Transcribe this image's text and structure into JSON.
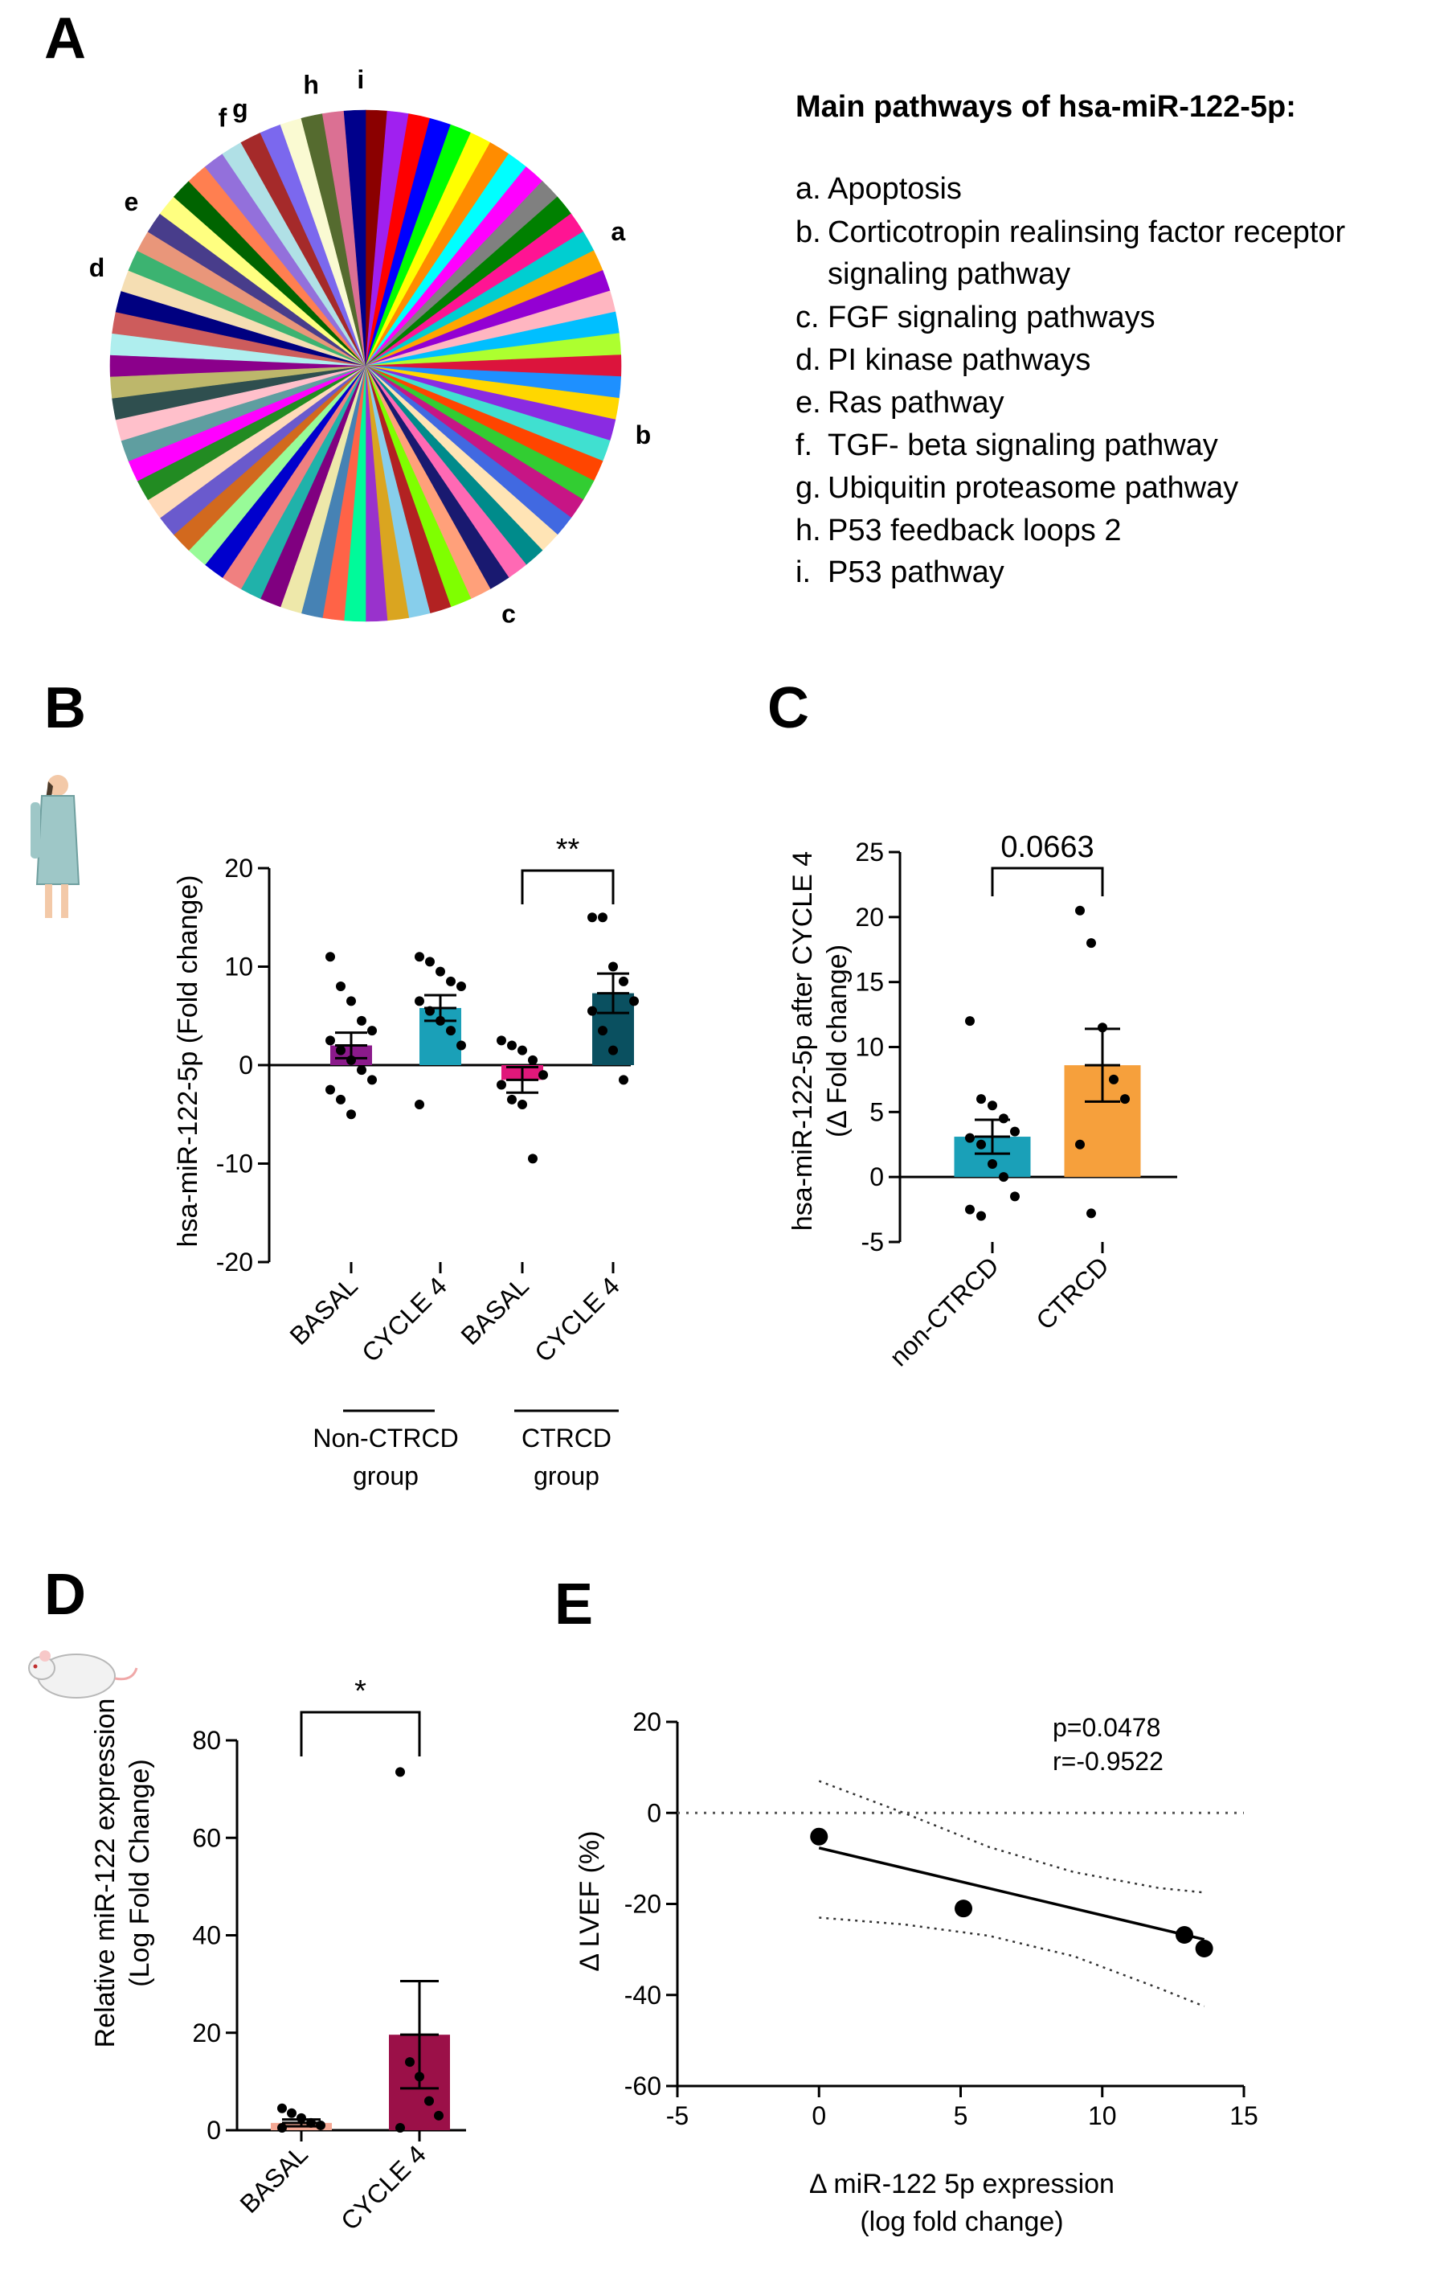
{
  "panels": {
    "A": "A",
    "B": "B",
    "C": "C",
    "D": "D",
    "E": "E"
  },
  "chart_data": [
    {
      "id": "A",
      "type": "pie",
      "title": "Main pathways of hsa-miR-122-5p:",
      "slice_count": 74,
      "slice_colors": [
        "#8b0000",
        "#a020f0",
        "#ff0000",
        "#0000ff",
        "#00ff00",
        "#ffff00",
        "#ff8c00",
        "#00ffff",
        "#ff00ff",
        "#808080",
        "#008000",
        "#ff1493",
        "#00ced1",
        "#ffa500",
        "#9400d3",
        "#ffb6c1",
        "#00bfff",
        "#adff2f",
        "#dc143c",
        "#1e90ff",
        "#ffd700",
        "#8a2be2",
        "#40e0d0",
        "#ff4500",
        "#32cd32",
        "#c71585",
        "#4169e1",
        "#ffe4b5",
        "#008b8b",
        "#ff69b4",
        "#191970",
        "#ffa07a",
        "#7fff00",
        "#b22222",
        "#87ceeb",
        "#daa520",
        "#9932cc",
        "#00fa9a",
        "#ff6347",
        "#4682b4",
        "#eee8aa",
        "#800080",
        "#20b2aa",
        "#f08080",
        "#0000cd",
        "#98fb98",
        "#d2691e",
        "#6a5acd",
        "#ffdab9",
        "#228b22",
        "#ff00ff",
        "#5f9ea0",
        "#ffc0cb",
        "#2f4f4f",
        "#bdb76b",
        "#8b008b",
        "#afeeee",
        "#cd5c5c",
        "#000080",
        "#f5deb3",
        "#3cb371",
        "#e9967a",
        "#483d8b",
        "#ffff80",
        "#006400",
        "#ff7f50",
        "#9370db",
        "#b0e0e6",
        "#a52a2a",
        "#7b68ee",
        "#fafad2",
        "#556b2f",
        "#db7093",
        "#00008b"
      ],
      "slice_labels": [
        {
          "key": "a",
          "text": "a"
        },
        {
          "key": "b",
          "text": "b"
        },
        {
          "key": "c",
          "text": "c"
        },
        {
          "key": "d",
          "text": "d"
        },
        {
          "key": "e",
          "text": "e"
        },
        {
          "key": "f",
          "text": "f"
        },
        {
          "key": "g",
          "text": "g"
        },
        {
          "key": "h",
          "text": "h"
        },
        {
          "key": "i",
          "text": "i"
        }
      ],
      "legend": [
        {
          "key": "a.",
          "lines": [
            "Apoptosis"
          ]
        },
        {
          "key": "b.",
          "lines": [
            "Corticotropin realinsing factor receptor",
            "signaling pathway"
          ]
        },
        {
          "key": "c.",
          "lines": [
            "FGF signaling pathways"
          ]
        },
        {
          "key": "d.",
          "lines": [
            "PI kinase pathways"
          ]
        },
        {
          "key": "e.",
          "lines": [
            "Ras pathway"
          ]
        },
        {
          "key": "f.",
          "lines": [
            "TGF- beta signaling pathway"
          ]
        },
        {
          "key": "g.",
          "lines": [
            "Ubiquitin proteasome pathway"
          ]
        },
        {
          "key": "h.",
          "lines": [
            "P53 feedback loops 2"
          ]
        },
        {
          "key": "i.",
          "lines": [
            "P53 pathway"
          ]
        }
      ]
    },
    {
      "id": "B",
      "type": "bar",
      "ylabel": "hsa-miR-122-5p (Fold change)",
      "ylim": [
        -20,
        20
      ],
      "yticks": [
        -20,
        -10,
        0,
        10,
        20
      ],
      "categories": [
        "BASAL",
        "CYCLE 4",
        "BASAL",
        "CYCLE 4"
      ],
      "groups": [
        {
          "label_lines": [
            "Non-CTRCD",
            "group"
          ]
        },
        {
          "label_lines": [
            "CTRCD",
            "group"
          ]
        }
      ],
      "bar_colors": [
        "#8b1a8b",
        "#1aa0b8",
        "#e0187a",
        "#0a5060"
      ],
      "values": [
        2.0,
        5.8,
        -1.5,
        7.3
      ],
      "sem": [
        1.3,
        1.3,
        1.3,
        2.0
      ],
      "points": [
        [
          11,
          8,
          6.5,
          4.5,
          3.5,
          2.5,
          1.5,
          0.5,
          -0.5,
          -1.5,
          -2.5,
          -3.5,
          -5
        ],
        [
          11,
          10.5,
          9.5,
          8.5,
          8,
          6.5,
          5.5,
          4.5,
          3.5,
          2,
          -4
        ],
        [
          2.5,
          2,
          1.5,
          0.5,
          -1,
          -2,
          -3.5,
          -4,
          -9.5
        ],
        [
          15,
          15,
          10,
          8.5,
          6.5,
          5.5,
          3.5,
          1.5,
          -1.5
        ]
      ],
      "significance": {
        "from": 2,
        "to": 3,
        "label": "**"
      }
    },
    {
      "id": "C",
      "type": "bar",
      "ylabel_lines": [
        "hsa-miR-122-5p after CYCLE 4",
        "(Δ Fold change)"
      ],
      "ylim": [
        -5,
        25
      ],
      "yticks": [
        -5,
        0,
        5,
        10,
        15,
        20,
        25
      ],
      "categories": [
        "non-CTRCD",
        "CTRCD"
      ],
      "bar_colors": [
        "#1aa0b8",
        "#f6a03c"
      ],
      "values": [
        3.1,
        8.6
      ],
      "sem": [
        1.3,
        2.8
      ],
      "points": [
        [
          12,
          6,
          5.5,
          4.5,
          3.5,
          3,
          2.5,
          1,
          0,
          -1.5,
          -2.5,
          -3
        ],
        [
          20.5,
          18,
          11.5,
          7.5,
          6,
          2.5,
          -2.8
        ]
      ],
      "significance": {
        "from": 0,
        "to": 1,
        "label": "0.0663"
      }
    },
    {
      "id": "D",
      "type": "bar",
      "ylabel_lines": [
        "Relative miR-122 expression",
        "(Log Fold Change)"
      ],
      "ylim": [
        0,
        80
      ],
      "yticks": [
        0,
        20,
        40,
        60,
        80
      ],
      "categories": [
        "BASAL",
        "CYCLE 4"
      ],
      "bar_colors": [
        "#f4a894",
        "#9b1048"
      ],
      "values": [
        1.5,
        19.6
      ],
      "sem": [
        0.7,
        11
      ],
      "points": [
        [
          4.5,
          3.5,
          2.5,
          1.5,
          1,
          0.5
        ],
        [
          73.5,
          14,
          11,
          6,
          3,
          0.5
        ]
      ],
      "significance": {
        "from": 0,
        "to": 1,
        "label": "*"
      }
    },
    {
      "id": "E",
      "type": "scatter",
      "xlabel_lines": [
        "Δ miR-122 5p expression",
        "(log fold change)"
      ],
      "ylabel": "Δ LVEF (%)",
      "xlim": [
        -5,
        15
      ],
      "ylim": [
        -60,
        20
      ],
      "xticks": [
        -5,
        0,
        5,
        10,
        15
      ],
      "yticks": [
        -60,
        -40,
        -20,
        0,
        20
      ],
      "points": [
        [
          0,
          -5.2
        ],
        [
          5.1,
          -21
        ],
        [
          12.9,
          -26.8
        ],
        [
          13.6,
          -29.8
        ]
      ],
      "fit": {
        "x": [
          0,
          13.6
        ],
        "y": [
          -7.7,
          -27.8
        ]
      },
      "ci_upper": {
        "x": [
          0,
          3,
          6,
          9,
          12,
          13.6
        ],
        "y": [
          7,
          0,
          -7.5,
          -13,
          -16.5,
          -17.5
        ]
      },
      "ci_lower": {
        "x": [
          0,
          3,
          6,
          9,
          12,
          13.6
        ],
        "y": [
          -23,
          -24.5,
          -27,
          -31.5,
          -38.5,
          -42.5
        ]
      },
      "annotation_lines": [
        "p=0.0478",
        "r=-0.9522"
      ]
    }
  ]
}
